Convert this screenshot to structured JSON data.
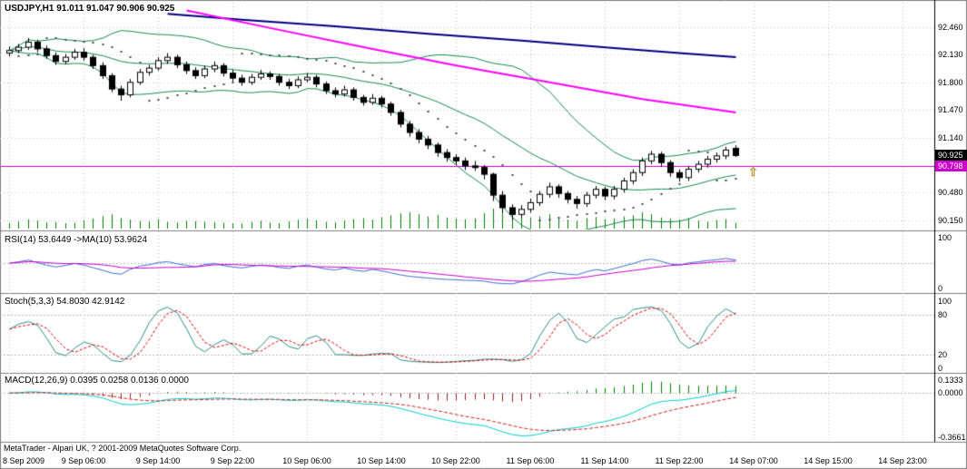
{
  "chart_data": {
    "type": "candlestick",
    "symbol": "USDJPY",
    "timeframe": "H1",
    "current": {
      "open": 91.011,
      "high": 91.047,
      "low": 90.906,
      "close": 90.925
    },
    "panels": {
      "main": {
        "title": "USDJPY,H1 91.011 91.047 90.906 90.925"
      },
      "rsi": {
        "title": "RSI(14) 53.6449 ->MA(10) 53.9624",
        "period": 14,
        "ma_period": 10,
        "y_labels": [
          {
            "v": 100,
            "text": "100"
          },
          {
            "v": 0,
            "text": "0"
          }
        ],
        "levels": [
          50
        ],
        "color": "#3b6fd4",
        "ma_color": "#cc00cc"
      },
      "stoch": {
        "title": "Stoch(5,3,3) 54.8030 42.9142",
        "k": 5,
        "slow": 3,
        "d": 3,
        "y_labels": [
          {
            "v": 100,
            "text": "100"
          },
          {
            "v": 80,
            "text": "80"
          },
          {
            "v": 20,
            "text": "20"
          },
          {
            "v": 0,
            "text": "0"
          }
        ],
        "levels": [
          80,
          20
        ],
        "color": "#2a8f8a",
        "signal_color": "#dd0000"
      },
      "macd": {
        "title": "MACD(12,26,9) 0.0395 0.0258 0.0136 0.0000",
        "fast": 12,
        "slow": 26,
        "signal": 9,
        "y_labels": [
          "0.1333",
          "0.0000",
          "-0.3661"
        ],
        "color": "#00cfcf",
        "signal_color": "#cc2222",
        "hist_up": "#008000",
        "hist_down": "#992222"
      }
    },
    "y_axis_main": [
      92.46,
      92.13,
      91.8,
      91.47,
      91.14,
      90.48,
      90.15
    ],
    "x_labels": [
      {
        "bar": 0,
        "text": "8 Sep 2009"
      },
      {
        "bar": 8,
        "text": "9 Sep 06:00"
      },
      {
        "bar": 16,
        "text": "9 Sep 14:00"
      },
      {
        "bar": 24,
        "text": "9 Sep 22:00"
      },
      {
        "bar": 32,
        "text": "10 Sep 06:00"
      },
      {
        "bar": 40,
        "text": "10 Sep 14:00"
      },
      {
        "bar": 48,
        "text": "10 Sep 22:00"
      },
      {
        "bar": 56,
        "text": "11 Sep 06:00"
      },
      {
        "bar": 64,
        "text": "11 Sep 14:00"
      },
      {
        "bar": 72,
        "text": "11 Sep 22:00"
      },
      {
        "bar": 80,
        "text": "14 Sep 07:00"
      },
      {
        "bar": 88,
        "text": "14 Sep 15:00"
      },
      {
        "bar": 96,
        "text": "14 Sep 23:00"
      }
    ],
    "ohlc": [
      [
        92.15,
        92.23,
        92.11,
        92.18
      ],
      [
        92.18,
        92.26,
        92.15,
        92.22
      ],
      [
        92.22,
        92.33,
        92.19,
        92.28
      ],
      [
        92.28,
        92.31,
        92.16,
        92.2
      ],
      [
        92.2,
        92.24,
        92.08,
        92.12
      ],
      [
        92.12,
        92.16,
        92.01,
        92.05
      ],
      [
        92.05,
        92.14,
        92.02,
        92.1
      ],
      [
        92.1,
        92.2,
        92.07,
        92.16
      ],
      [
        92.16,
        92.21,
        92.06,
        92.1
      ],
      [
        92.1,
        92.13,
        91.96,
        92.0
      ],
      [
        92.0,
        92.04,
        91.84,
        91.88
      ],
      [
        91.88,
        91.91,
        91.68,
        91.72
      ],
      [
        91.72,
        91.76,
        91.58,
        91.65
      ],
      [
        91.65,
        91.84,
        91.62,
        91.8
      ],
      [
        91.8,
        91.96,
        91.77,
        91.92
      ],
      [
        91.92,
        92.01,
        91.88,
        91.97
      ],
      [
        91.97,
        92.1,
        91.94,
        92.06
      ],
      [
        92.06,
        92.15,
        92.02,
        92.1
      ],
      [
        92.1,
        92.13,
        91.97,
        92.01
      ],
      [
        92.01,
        92.05,
        91.9,
        91.94
      ],
      [
        91.94,
        91.98,
        91.84,
        91.88
      ],
      [
        91.88,
        92.0,
        91.85,
        91.96
      ],
      [
        91.96,
        92.05,
        91.92,
        92.0
      ],
      [
        92.0,
        92.03,
        91.87,
        91.91
      ],
      [
        91.91,
        91.95,
        91.81,
        91.85
      ],
      [
        91.85,
        91.89,
        91.76,
        91.8
      ],
      [
        91.8,
        91.9,
        91.77,
        91.86
      ],
      [
        91.86,
        91.95,
        91.83,
        91.9
      ],
      [
        91.9,
        91.93,
        91.83,
        91.87
      ],
      [
        91.87,
        91.9,
        91.76,
        91.8
      ],
      [
        91.8,
        91.84,
        91.72,
        91.76
      ],
      [
        91.76,
        91.87,
        91.73,
        91.83
      ],
      [
        91.83,
        91.91,
        91.8,
        91.86
      ],
      [
        91.86,
        91.89,
        91.74,
        91.78
      ],
      [
        91.78,
        91.81,
        91.66,
        91.7
      ],
      [
        91.7,
        91.74,
        91.62,
        91.66
      ],
      [
        91.66,
        91.76,
        91.63,
        91.71
      ],
      [
        91.71,
        91.74,
        91.58,
        91.62
      ],
      [
        91.62,
        91.65,
        91.52,
        91.56
      ],
      [
        91.56,
        91.66,
        91.53,
        91.61
      ],
      [
        91.61,
        91.64,
        91.5,
        91.54
      ],
      [
        91.54,
        91.57,
        91.4,
        91.44
      ],
      [
        91.44,
        91.47,
        91.26,
        91.3
      ],
      [
        91.3,
        91.34,
        91.15,
        91.2
      ],
      [
        91.2,
        91.24,
        91.07,
        91.12
      ],
      [
        91.12,
        91.16,
        91.0,
        91.05
      ],
      [
        91.05,
        91.08,
        90.91,
        90.96
      ],
      [
        90.96,
        91.0,
        90.85,
        90.9
      ],
      [
        90.9,
        90.94,
        90.81,
        90.86
      ],
      [
        90.86,
        90.9,
        90.75,
        90.8
      ],
      [
        90.8,
        90.86,
        90.74,
        90.78
      ],
      [
        90.78,
        90.81,
        90.64,
        90.7
      ],
      [
        90.7,
        90.72,
        90.38,
        90.45
      ],
      [
        90.45,
        90.5,
        90.24,
        90.3
      ],
      [
        90.3,
        90.34,
        90.15,
        90.22
      ],
      [
        90.22,
        90.33,
        90.18,
        90.28
      ],
      [
        90.28,
        90.41,
        90.24,
        90.36
      ],
      [
        90.36,
        90.5,
        90.32,
        90.46
      ],
      [
        90.46,
        90.6,
        90.42,
        90.55
      ],
      [
        90.55,
        90.58,
        90.42,
        90.47
      ],
      [
        90.47,
        90.5,
        90.35,
        90.4
      ],
      [
        90.4,
        90.44,
        90.29,
        90.35
      ],
      [
        90.35,
        90.49,
        90.31,
        90.45
      ],
      [
        90.45,
        90.56,
        90.41,
        90.52
      ],
      [
        90.52,
        90.55,
        90.39,
        90.44
      ],
      [
        90.44,
        90.56,
        90.4,
        90.52
      ],
      [
        90.52,
        90.66,
        90.48,
        90.62
      ],
      [
        90.62,
        90.76,
        90.58,
        90.72
      ],
      [
        90.72,
        90.9,
        90.68,
        90.86
      ],
      [
        90.86,
        90.98,
        90.82,
        90.94
      ],
      [
        90.94,
        90.97,
        90.79,
        90.84
      ],
      [
        90.84,
        90.87,
        90.67,
        90.72
      ],
      [
        90.72,
        90.76,
        90.61,
        90.66
      ],
      [
        90.66,
        90.8,
        90.62,
        90.76
      ],
      [
        90.76,
        90.86,
        90.72,
        90.82
      ],
      [
        90.82,
        90.92,
        90.78,
        90.88
      ],
      [
        90.88,
        90.96,
        90.84,
        90.92
      ],
      [
        90.92,
        91.03,
        90.88,
        90.99
      ],
      [
        91.011,
        91.047,
        90.906,
        90.925
      ]
    ],
    "volume": [
      52,
      66,
      84,
      73,
      58,
      61,
      49,
      55,
      78,
      92,
      115,
      132,
      98,
      82,
      71,
      66,
      88,
      62,
      57,
      72,
      68,
      64,
      59,
      54,
      50,
      47,
      63,
      72,
      56,
      51,
      67,
      82,
      93,
      77,
      62,
      57,
      73,
      88,
      97,
      82,
      104,
      122,
      141,
      152,
      133,
      112,
      127,
      103,
      92,
      87,
      97,
      142,
      184,
      165,
      152,
      123,
      103,
      112,
      133,
      93,
      82,
      72,
      97,
      107,
      87,
      92,
      112,
      123,
      152,
      133,
      103,
      93,
      83,
      97,
      73,
      63,
      78,
      88,
      54
    ],
    "overlays": {
      "bollinger": {
        "period": 20,
        "deviation": 2,
        "color": "#168a4e"
      },
      "ma_lines": [
        {
          "name": "slow-ma-blue",
          "color": "#000080",
          "points": [
            [
              17,
              92.62
            ],
            [
              25,
              92.55
            ],
            [
              35,
              92.47
            ],
            [
              45,
              92.38
            ],
            [
              55,
              92.3
            ],
            [
              65,
              92.21
            ],
            [
              72,
              92.15
            ],
            [
              78,
              92.1
            ]
          ]
        },
        {
          "name": "fast-ma-magenta",
          "color": "#ff00ff",
          "points": [
            [
              19,
              92.66
            ],
            [
              28,
              92.45
            ],
            [
              38,
              92.22
            ],
            [
              48,
              92.0
            ],
            [
              58,
              91.8
            ],
            [
              68,
              91.6
            ],
            [
              73,
              91.52
            ],
            [
              78,
              91.44
            ]
          ]
        }
      ],
      "psar": {
        "step": 0.02,
        "maximum": 0.2,
        "color": "#444444"
      },
      "hline": {
        "price": 90.798,
        "color": "#cc00cc"
      }
    },
    "badges": [
      {
        "text": "90.925",
        "price": 90.925,
        "bg": "#000000"
      },
      {
        "text": "90.798",
        "price": 90.798,
        "bg": "#cc00cc"
      }
    ],
    "arrow": {
      "char": "⇧",
      "bar": 80,
      "price": 90.72,
      "color": "#b8912f"
    },
    "colors": {
      "volume": "#008000",
      "grid": "#c6c6c6",
      "level": "#b8b8b8",
      "candle_up": "#ffffff",
      "candle_down": "#000000",
      "outline": "#000000"
    }
  },
  "footer": {
    "text": "MetaTrader - Alpari UK, ? 2001-2009 MetaQuotes Software Corp."
  }
}
